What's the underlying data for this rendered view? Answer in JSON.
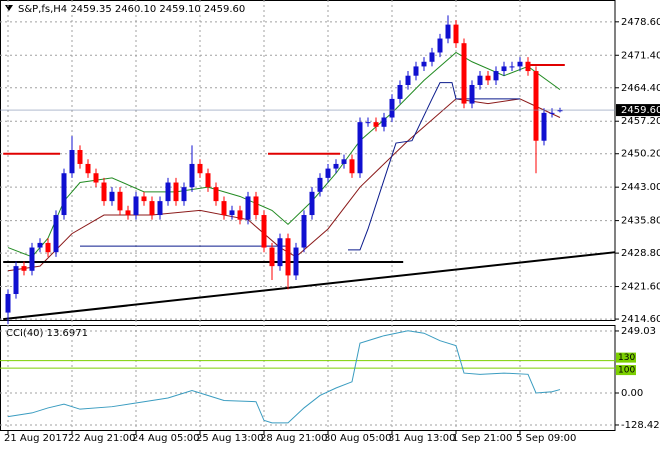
{
  "chart_data": [
    {
      "type": "candlestick",
      "title": "S&P,fs,H4  2459.35 2460.10 2459.10 2459.60",
      "categories": [
        "21 Aug 2017",
        null,
        null,
        null,
        null,
        null,
        null,
        null,
        "22 Aug 21:00",
        null,
        null,
        null,
        null,
        null,
        null,
        null,
        "24 Aug 05:00",
        null,
        null,
        null,
        null,
        null,
        null,
        null,
        "25 Aug 13:00",
        null,
        null,
        null,
        null,
        null,
        null,
        null,
        "28 Aug 21:00",
        null,
        null,
        null,
        null,
        null,
        null,
        null,
        "30 Aug 05:00",
        null,
        null,
        null,
        null,
        null,
        null,
        null,
        "31 Aug 13:00",
        null,
        null,
        null,
        null,
        null,
        null,
        null,
        "1 Sep 21:00",
        null,
        null,
        null,
        null,
        null,
        null,
        null,
        "5 Sep 09:00",
        null,
        null,
        null,
        null,
        null
      ],
      "open": [
        2416,
        2420,
        2426,
        2425,
        2430,
        2431,
        2429,
        2437,
        2446,
        2451,
        2448,
        2446,
        2444,
        2440,
        2442,
        2438,
        2437,
        2441,
        2440,
        2437,
        2440,
        2444,
        2440,
        2443,
        2448,
        2446,
        2443,
        2440,
        2437,
        2438,
        2436,
        2441,
        2437,
        2430,
        2426,
        2432,
        2424,
        2430,
        2437,
        2442,
        2445,
        2447,
        2448,
        2449,
        2446,
        2457,
        2457,
        2456,
        2458,
        2462,
        2465,
        2467,
        2469,
        2470,
        2472,
        2475,
        2478,
        2474,
        2461,
        2465,
        2467,
        2466,
        2468,
        2469,
        2469,
        2470,
        2468,
        2453,
        2459,
        2459.35
      ],
      "high": [
        2421,
        2427,
        2427,
        2431,
        2432,
        2432,
        2438,
        2447,
        2454,
        2452,
        2449,
        2447,
        2445,
        2443,
        2443,
        2439,
        2442,
        2442,
        2441,
        2441,
        2445,
        2445,
        2444,
        2452,
        2449,
        2447,
        2444,
        2441,
        2439,
        2439,
        2442,
        2442,
        2438,
        2431,
        2433,
        2433,
        2431,
        2438,
        2443,
        2446,
        2448,
        2449,
        2450,
        2450,
        2458,
        2458,
        2458,
        2459,
        2463,
        2466,
        2468,
        2470,
        2471,
        2473,
        2476,
        2480,
        2479,
        2475,
        2466,
        2468,
        2468,
        2469,
        2470,
        2470,
        2471,
        2471,
        2469,
        2460,
        2460,
        2460.1
      ],
      "low": [
        2413.5,
        2419,
        2424,
        2424,
        2429,
        2428,
        2428,
        2436,
        2445,
        2447,
        2445,
        2443,
        2439,
        2439,
        2437,
        2436,
        2436,
        2439,
        2436,
        2436,
        2439,
        2439,
        2439,
        2442,
        2445,
        2442,
        2439,
        2436,
        2436,
        2435,
        2435,
        2436,
        2429,
        2423,
        2425,
        2421,
        2423,
        2429,
        2436,
        2441,
        2444,
        2446,
        2447,
        2445,
        2445,
        2456,
        2455,
        2455,
        2457,
        2461,
        2464,
        2466,
        2468,
        2469,
        2471,
        2474,
        2473,
        2460,
        2460,
        2464,
        2465,
        2465,
        2467,
        2468,
        2468,
        2467,
        2446,
        2452,
        2458,
        2459.1
      ],
      "close": [
        2420,
        2426,
        2425,
        2430,
        2431,
        2429,
        2437,
        2446,
        2451,
        2448,
        2446,
        2444,
        2440,
        2442,
        2438,
        2437,
        2441,
        2440,
        2437,
        2440,
        2444,
        2440,
        2443,
        2448,
        2446,
        2443,
        2440,
        2437,
        2438,
        2436,
        2441,
        2437,
        2430,
        2426,
        2432,
        2424,
        2430,
        2437,
        2442,
        2445,
        2447,
        2448,
        2449,
        2446,
        2457,
        2457,
        2456,
        2458,
        2462,
        2465,
        2467,
        2469,
        2470,
        2472,
        2475,
        2478,
        2474,
        2461,
        2465,
        2467,
        2466,
        2468,
        2469,
        2469,
        2470,
        2468,
        2453,
        2459,
        2459,
        2459.6
      ],
      "up_color": "#1010d0",
      "down_color": "#ff0000",
      "series": [
        {
          "color": "#228b22",
          "x": [
            0,
            3,
            5,
            7,
            9,
            13,
            17,
            21,
            25,
            29,
            33,
            35,
            38,
            41,
            44,
            48,
            52,
            56,
            58,
            62,
            65,
            69
          ],
          "values": [
            2430,
            2428,
            2432,
            2440,
            2444,
            2445,
            2442,
            2442,
            2443,
            2441,
            2438,
            2435,
            2440,
            2446,
            2453,
            2459,
            2466,
            2472,
            2470,
            2467,
            2469,
            2464
          ]
        },
        {
          "color": "#8b1a1a",
          "x": [
            0,
            4,
            8,
            12,
            18,
            24,
            30,
            34,
            36,
            40,
            44,
            50,
            56,
            60,
            64,
            69
          ],
          "values": [
            2425,
            2426,
            2433,
            2437,
            2437,
            2438,
            2436,
            2430,
            2428,
            2434,
            2443,
            2453,
            2462,
            2461,
            2462,
            2458
          ]
        },
        {
          "color": "#0a1a8c",
          "x": [
            9,
            35,
            36,
            42.5,
            44,
            45,
            48.5,
            50.5,
            53,
            54,
            55.5,
            56,
            64
          ],
          "values": [
            2430.3,
            2430.3,
            null,
            2429.5,
            2429.5,
            2434,
            2452.5,
            2453,
            2462,
            2465.5,
            2465.5,
            2462,
            2462
          ]
        }
      ],
      "segments": [
        {
          "color": "#e00000",
          "x": [
            -0.6,
            6.5
          ],
          "y": [
            2450.2,
            2450.2
          ]
        },
        {
          "color": "#e00000",
          "x": [
            32.5,
            41.5
          ],
          "y": [
            2450.2,
            2450.2
          ]
        },
        {
          "color": "#e00000",
          "x": [
            65.2,
            69.6
          ],
          "y": [
            2469.3,
            2469.3
          ]
        },
        {
          "color": "#000000",
          "x": [
            -0.6,
            49.4
          ],
          "y": [
            2426.9,
            2426.9
          ]
        },
        {
          "color": "#000000",
          "x": [
            -0.6,
            75.9
          ],
          "y": [
            2414.6,
            2429
          ]
        }
      ],
      "last_price": {
        "value": 2459.6,
        "label": "2459.60"
      },
      "ylim": [
        2414.4,
        2483.3
      ],
      "yticks": [
        {
          "value": 2478.6,
          "label": "2478.60"
        },
        {
          "value": 2471.4,
          "label": "2471.40"
        },
        {
          "value": 2464.4,
          "label": "2464.40"
        },
        {
          "value": 2457.2,
          "label": "2457.20"
        },
        {
          "value": 2450.2,
          "label": "2450.20"
        },
        {
          "value": 2443,
          "label": "2443.00"
        },
        {
          "value": 2435.8,
          "label": "2435.80"
        },
        {
          "value": 2428.8,
          "label": "2428.80"
        },
        {
          "value": 2421.6,
          "label": "2421.60"
        },
        {
          "value": 2414.6,
          "label": "2414.60"
        }
      ],
      "grid": true
    },
    {
      "type": "line",
      "title": "CCI(40) 13.6971",
      "color": "#3a9cc0",
      "x": [
        0,
        3,
        5,
        7,
        9,
        13,
        17,
        20,
        23,
        25,
        27,
        31,
        32,
        33,
        35,
        37,
        39,
        41,
        43,
        44,
        47,
        50,
        52,
        54,
        56,
        57,
        59,
        62,
        65,
        66,
        68,
        69
      ],
      "values": [
        -95,
        -80,
        -60,
        -45,
        -65,
        -55,
        -35,
        -20,
        10,
        -10,
        -30,
        -35,
        -110,
        -120,
        -120,
        -60,
        -10,
        20,
        45,
        200,
        230,
        250,
        240,
        210,
        190,
        80,
        75,
        80,
        75,
        0,
        5,
        13.6971
      ],
      "levels": [
        130,
        100
      ],
      "level_color": "#7cd000",
      "ylim": [
        -148.6,
        273
      ],
      "yticks": [
        249.03,
        {
          "value": 0,
          "label": "0.00"
        },
        -128.4224
      ],
      "grid": true
    }
  ]
}
